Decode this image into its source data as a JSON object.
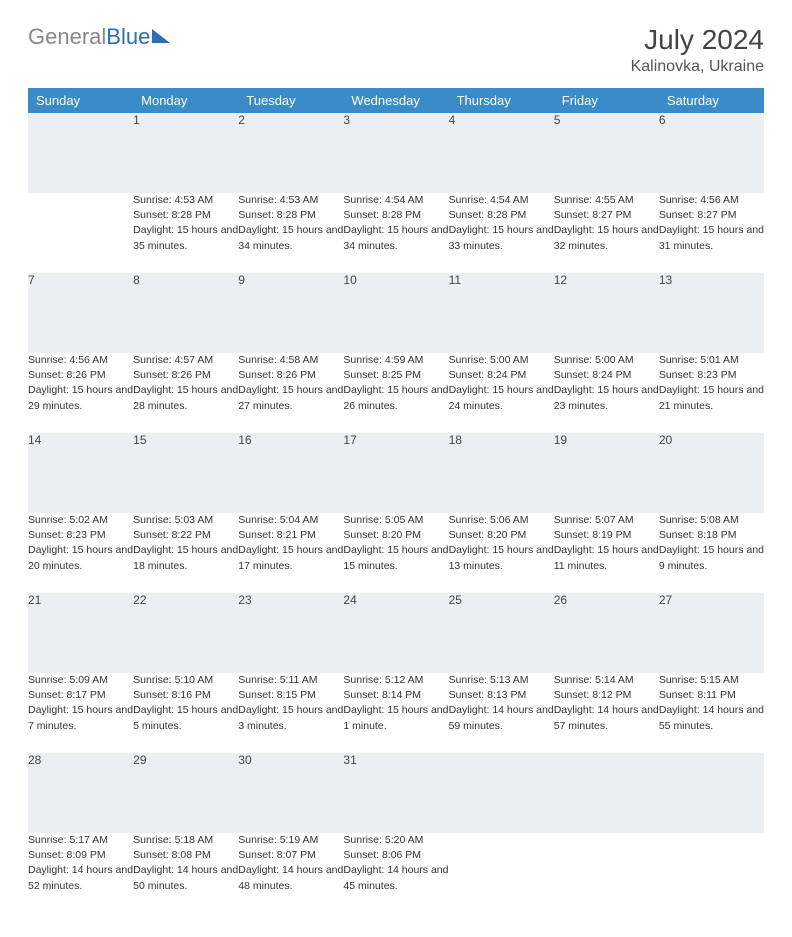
{
  "brand": {
    "part1": "General",
    "part2": "Blue"
  },
  "title": "July 2024",
  "location": "Kalinovka, Ukraine",
  "colors": {
    "header_bg": "#3b8bc9",
    "accent": "#2a6fb5",
    "daynum_bg": "#eceff1",
    "text": "#333"
  },
  "weekdays": [
    "Sunday",
    "Monday",
    "Tuesday",
    "Wednesday",
    "Thursday",
    "Friday",
    "Saturday"
  ],
  "weeks": [
    {
      "nums": [
        "",
        "1",
        "2",
        "3",
        "4",
        "5",
        "6"
      ],
      "info": [
        "",
        "Sunrise: 4:53 AM\nSunset: 8:28 PM\nDaylight: 15 hours and 35 minutes.",
        "Sunrise: 4:53 AM\nSunset: 8:28 PM\nDaylight: 15 hours and 34 minutes.",
        "Sunrise: 4:54 AM\nSunset: 8:28 PM\nDaylight: 15 hours and 34 minutes.",
        "Sunrise: 4:54 AM\nSunset: 8:28 PM\nDaylight: 15 hours and 33 minutes.",
        "Sunrise: 4:55 AM\nSunset: 8:27 PM\nDaylight: 15 hours and 32 minutes.",
        "Sunrise: 4:56 AM\nSunset: 8:27 PM\nDaylight: 15 hours and 31 minutes."
      ]
    },
    {
      "nums": [
        "7",
        "8",
        "9",
        "10",
        "11",
        "12",
        "13"
      ],
      "info": [
        "Sunrise: 4:56 AM\nSunset: 8:26 PM\nDaylight: 15 hours and 29 minutes.",
        "Sunrise: 4:57 AM\nSunset: 8:26 PM\nDaylight: 15 hours and 28 minutes.",
        "Sunrise: 4:58 AM\nSunset: 8:26 PM\nDaylight: 15 hours and 27 minutes.",
        "Sunrise: 4:59 AM\nSunset: 8:25 PM\nDaylight: 15 hours and 26 minutes.",
        "Sunrise: 5:00 AM\nSunset: 8:24 PM\nDaylight: 15 hours and 24 minutes.",
        "Sunrise: 5:00 AM\nSunset: 8:24 PM\nDaylight: 15 hours and 23 minutes.",
        "Sunrise: 5:01 AM\nSunset: 8:23 PM\nDaylight: 15 hours and 21 minutes."
      ]
    },
    {
      "nums": [
        "14",
        "15",
        "16",
        "17",
        "18",
        "19",
        "20"
      ],
      "info": [
        "Sunrise: 5:02 AM\nSunset: 8:23 PM\nDaylight: 15 hours and 20 minutes.",
        "Sunrise: 5:03 AM\nSunset: 8:22 PM\nDaylight: 15 hours and 18 minutes.",
        "Sunrise: 5:04 AM\nSunset: 8:21 PM\nDaylight: 15 hours and 17 minutes.",
        "Sunrise: 5:05 AM\nSunset: 8:20 PM\nDaylight: 15 hours and 15 minutes.",
        "Sunrise: 5:06 AM\nSunset: 8:20 PM\nDaylight: 15 hours and 13 minutes.",
        "Sunrise: 5:07 AM\nSunset: 8:19 PM\nDaylight: 15 hours and 11 minutes.",
        "Sunrise: 5:08 AM\nSunset: 8:18 PM\nDaylight: 15 hours and 9 minutes."
      ]
    },
    {
      "nums": [
        "21",
        "22",
        "23",
        "24",
        "25",
        "26",
        "27"
      ],
      "info": [
        "Sunrise: 5:09 AM\nSunset: 8:17 PM\nDaylight: 15 hours and 7 minutes.",
        "Sunrise: 5:10 AM\nSunset: 8:16 PM\nDaylight: 15 hours and 5 minutes.",
        "Sunrise: 5:11 AM\nSunset: 8:15 PM\nDaylight: 15 hours and 3 minutes.",
        "Sunrise: 5:12 AM\nSunset: 8:14 PM\nDaylight: 15 hours and 1 minute.",
        "Sunrise: 5:13 AM\nSunset: 8:13 PM\nDaylight: 14 hours and 59 minutes.",
        "Sunrise: 5:14 AM\nSunset: 8:12 PM\nDaylight: 14 hours and 57 minutes.",
        "Sunrise: 5:15 AM\nSunset: 8:11 PM\nDaylight: 14 hours and 55 minutes."
      ]
    },
    {
      "nums": [
        "28",
        "29",
        "30",
        "31",
        "",
        "",
        ""
      ],
      "info": [
        "Sunrise: 5:17 AM\nSunset: 8:09 PM\nDaylight: 14 hours and 52 minutes.",
        "Sunrise: 5:18 AM\nSunset: 8:08 PM\nDaylight: 14 hours and 50 minutes.",
        "Sunrise: 5:19 AM\nSunset: 8:07 PM\nDaylight: 14 hours and 48 minutes.",
        "Sunrise: 5:20 AM\nSunset: 8:06 PM\nDaylight: 14 hours and 45 minutes.",
        "",
        "",
        ""
      ]
    }
  ]
}
